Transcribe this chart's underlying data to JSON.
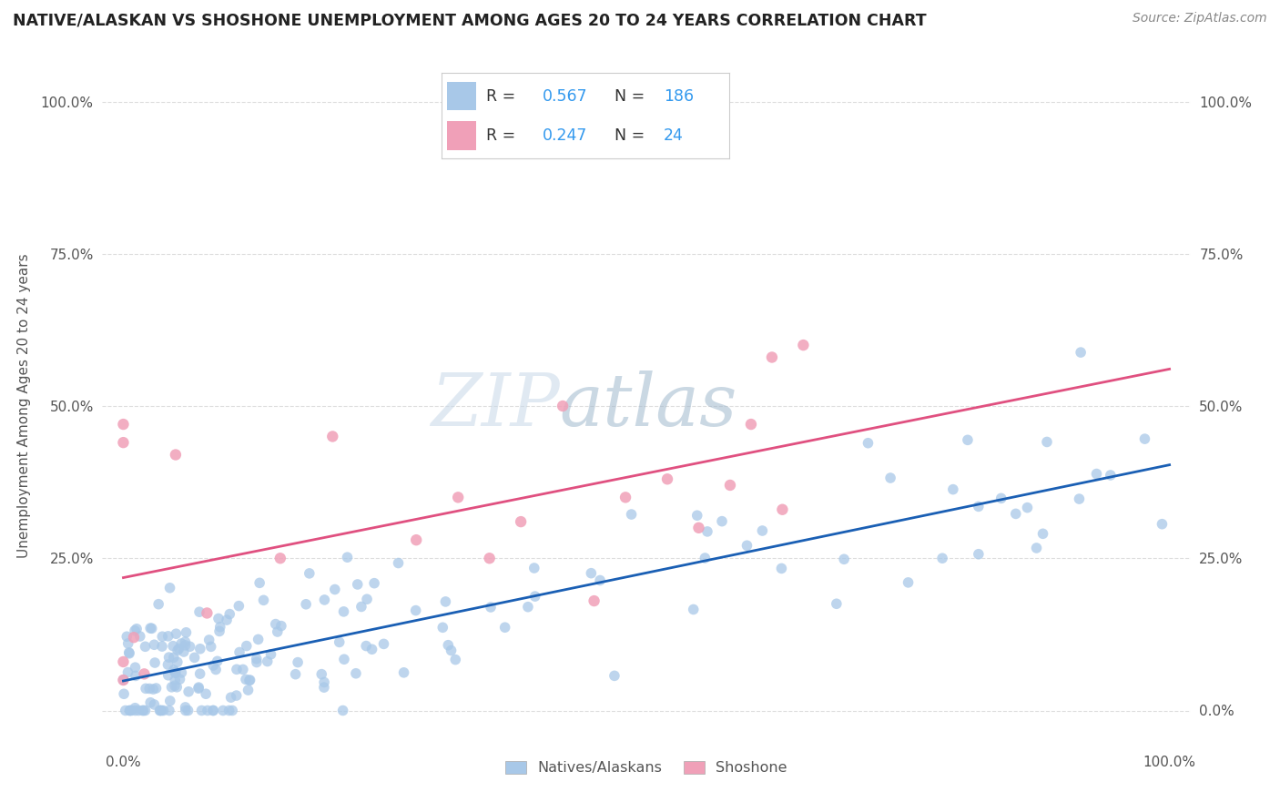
{
  "title": "NATIVE/ALASKAN VS SHOSHONE UNEMPLOYMENT AMONG AGES 20 TO 24 YEARS CORRELATION CHART",
  "source": "Source: ZipAtlas.com",
  "ylabel": "Unemployment Among Ages 20 to 24 years",
  "r_native": 0.567,
  "n_native": 186,
  "r_shoshone": 0.247,
  "n_shoshone": 24,
  "native_color": "#a8c8e8",
  "shoshone_color": "#f0a0b8",
  "native_line_color": "#1a5fb4",
  "shoshone_line_color": "#e05080",
  "legend_label_native": "Natives/Alaskans",
  "legend_label_shoshone": "Shoshone",
  "watermark_zip": "ZIP",
  "watermark_atlas": "atlas",
  "background_color": "#ffffff",
  "label_color": "#555555",
  "blue_text_color": "#3399ee",
  "grid_color": "#dddddd",
  "title_color": "#222222",
  "source_color": "#888888"
}
